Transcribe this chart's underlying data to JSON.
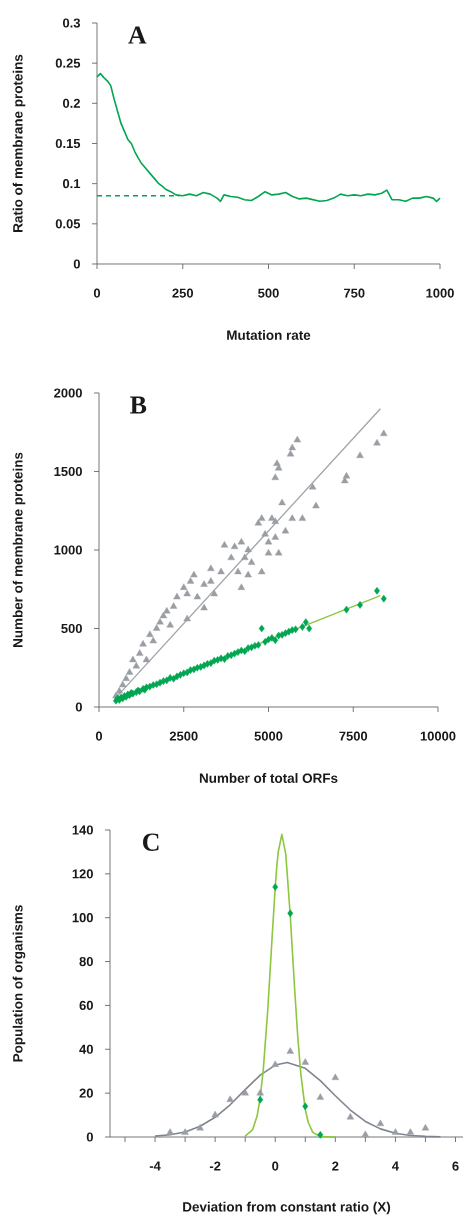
{
  "chart_data": [
    {
      "type": "line",
      "title": "A",
      "xlabel": "Mutation rate",
      "ylabel": "Ratio of membrane proteins",
      "xlim": [
        0,
        1000
      ],
      "ylim": [
        0,
        0.3
      ],
      "xticks": [
        0,
        250,
        500,
        750,
        1000
      ],
      "yticks": [
        0,
        0.05,
        0.1,
        0.15,
        0.2,
        0.25,
        0.3
      ],
      "series": [
        {
          "color": "#00a651",
          "marker": "none",
          "line_style": "solid",
          "x": [
            0,
            10,
            20,
            30,
            40,
            50,
            60,
            70,
            80,
            90,
            100,
            110,
            120,
            130,
            140,
            150,
            160,
            170,
            180,
            190,
            200,
            215,
            230,
            250,
            270,
            290,
            310,
            330,
            350,
            360,
            370,
            390,
            410,
            430,
            450,
            470,
            490,
            510,
            530,
            550,
            570,
            590,
            610,
            630,
            650,
            670,
            690,
            710,
            730,
            750,
            770,
            790,
            810,
            830,
            845,
            860,
            880,
            900,
            920,
            940,
            960,
            980,
            990,
            1000
          ],
          "values": [
            0.233,
            0.237,
            0.232,
            0.228,
            0.222,
            0.205,
            0.19,
            0.175,
            0.165,
            0.155,
            0.15,
            0.14,
            0.132,
            0.125,
            0.12,
            0.115,
            0.11,
            0.105,
            0.1,
            0.097,
            0.093,
            0.09,
            0.086,
            0.085,
            0.087,
            0.085,
            0.089,
            0.087,
            0.082,
            0.078,
            0.086,
            0.084,
            0.083,
            0.08,
            0.079,
            0.084,
            0.09,
            0.086,
            0.087,
            0.089,
            0.084,
            0.081,
            0.082,
            0.08,
            0.078,
            0.079,
            0.082,
            0.087,
            0.085,
            0.086,
            0.085,
            0.087,
            0.086,
            0.088,
            0.092,
            0.08,
            0.08,
            0.078,
            0.082,
            0.082,
            0.084,
            0.082,
            0.078,
            0.082
          ]
        },
        {
          "color": "#00a651",
          "marker": "none",
          "line_style": "dashed",
          "x": [
            0,
            240
          ],
          "values": [
            0.085,
            0.085
          ]
        }
      ]
    },
    {
      "type": "scatter",
      "title": "B",
      "xlabel": "Number of total ORFs",
      "ylabel": "Number of membrane proteins",
      "xlim": [
        0,
        10000
      ],
      "ylim": [
        0,
        2000
      ],
      "xticks": [
        0,
        2500,
        5000,
        7500,
        10000
      ],
      "yticks": [
        0,
        500,
        1000,
        1500,
        2000
      ],
      "series": [
        {
          "color": "#9a9ea4",
          "marker": "triangle",
          "x": [
            5850,
            5700,
            5650,
            5250,
            5300,
            5200,
            7300,
            7250,
            7700,
            8200,
            8400,
            6300,
            6400,
            5400,
            5700,
            6000,
            5200,
            4700,
            4800,
            5100,
            4900,
            5200,
            5500,
            5000,
            4400,
            4200,
            3700,
            4000,
            3900,
            4300,
            4500,
            4100,
            4400,
            5000,
            3600,
            3300,
            3300,
            3100,
            2800,
            2700,
            2500,
            2600,
            2900,
            3100,
            2300,
            2200,
            2000,
            1900,
            1800,
            1700,
            1500,
            1600,
            1300,
            1200,
            1000,
            1100,
            900,
            800,
            700,
            600,
            500,
            2100,
            2600,
            1400,
            3400,
            4200,
            4800,
            5300
          ],
          "values": [
            1700,
            1650,
            1610,
            1550,
            1520,
            1460,
            1470,
            1440,
            1600,
            1680,
            1740,
            1400,
            1280,
            1300,
            1200,
            1200,
            1180,
            1170,
            1200,
            1200,
            1100,
            1080,
            1120,
            1050,
            1000,
            1050,
            1030,
            1020,
            950,
            950,
            920,
            860,
            840,
            980,
            860,
            880,
            800,
            780,
            840,
            800,
            760,
            720,
            700,
            630,
            700,
            640,
            610,
            580,
            540,
            500,
            460,
            420,
            400,
            340,
            300,
            260,
            220,
            180,
            140,
            100,
            70,
            520,
            560,
            300,
            720,
            760,
            860,
            980
          ]
        },
        {
          "color": "#00a651",
          "marker": "diamond",
          "x": [
            500,
            550,
            600,
            650,
            700,
            750,
            800,
            850,
            900,
            950,
            1000,
            1100,
            1150,
            1200,
            1300,
            1350,
            1400,
            1500,
            1600,
            1700,
            1800,
            1900,
            2000,
            2100,
            2200,
            2300,
            2400,
            2500,
            2600,
            2700,
            2800,
            2900,
            3000,
            3100,
            3200,
            3300,
            3400,
            3500,
            3600,
            3700,
            3800,
            3900,
            4000,
            4100,
            4200,
            4300,
            4400,
            4500,
            4600,
            4700,
            4800,
            4900,
            5000,
            5100,
            5200,
            5300,
            5400,
            5500,
            5600,
            5700,
            5800,
            6000,
            6100,
            6200,
            7300,
            7700,
            8200,
            8400
          ],
          "values": [
            40,
            55,
            45,
            60,
            55,
            70,
            65,
            80,
            75,
            90,
            85,
            95,
            105,
            100,
            115,
            110,
            125,
            130,
            140,
            145,
            155,
            165,
            170,
            185,
            180,
            195,
            205,
            215,
            220,
            235,
            240,
            250,
            255,
            265,
            275,
            280,
            295,
            300,
            310,
            305,
            325,
            330,
            340,
            350,
            360,
            355,
            375,
            380,
            390,
            395,
            500,
            415,
            430,
            440,
            425,
            455,
            460,
            470,
            480,
            490,
            495,
            510,
            540,
            500,
            620,
            650,
            740,
            690
          ]
        },
        {
          "type": "line",
          "color": "#a0a4a8",
          "marker": "none",
          "line_style": "solid",
          "x": [
            500,
            8300
          ],
          "values": [
            60,
            1900
          ]
        },
        {
          "type": "line",
          "color": "#8dc63f",
          "marker": "none",
          "line_style": "solid",
          "x": [
            500,
            8300
          ],
          "values": [
            40,
            710
          ]
        }
      ]
    },
    {
      "type": "scatter",
      "title": "C",
      "xlabel": "Deviation from constant ratio (X)",
      "ylabel": "Population of organisms",
      "xlim": [
        -5.5,
        6.25
      ],
      "ylim": [
        0,
        140
      ],
      "xticks": [
        {
          "value": -5,
          "label": null
        },
        -4,
        {
          "value": -3,
          "label": null
        },
        -2,
        {
          "value": -1,
          "label": null
        },
        0,
        {
          "value": 1,
          "label": null
        },
        2,
        {
          "value": 3,
          "label": null
        },
        4,
        {
          "value": 5,
          "label": null
        },
        6
      ],
      "yticks": [
        0,
        20,
        40,
        60,
        80,
        100,
        120,
        140
      ],
      "series": [
        {
          "type": "line",
          "color": "#7f8590",
          "marker": "none",
          "line_style": "solid",
          "x": [
            -4,
            -3.5,
            -3,
            -2.5,
            -2,
            -1.5,
            -1,
            -0.5,
            0,
            0.4,
            1,
            1.5,
            2,
            2.5,
            3,
            3.5,
            4,
            4.5,
            5,
            5.5
          ],
          "values": [
            0.4,
            1,
            2.3,
            4.9,
            9,
            14.7,
            21.6,
            28.2,
            32.8,
            34,
            31.3,
            25.7,
            18.8,
            12.3,
            7.1,
            3.7,
            1.7,
            0.7,
            0.3,
            0.1
          ]
        },
        {
          "type": "line",
          "color": "#8dc63f",
          "marker": "none",
          "line_style": "solid",
          "x": [
            -1,
            -0.75,
            -0.6,
            -0.5,
            -0.4,
            -0.25,
            -0.15,
            -0.1,
            0,
            0.05,
            0.1,
            0.22,
            0.35,
            0.5,
            0.6,
            0.65,
            0.75,
            0.85,
            1,
            1.1,
            1.25,
            1.5,
            2
          ],
          "values": [
            0.4,
            3.4,
            9.8,
            18,
            30.4,
            57.8,
            80.5,
            92,
            114,
            123,
            130,
            138,
            129,
            101,
            78,
            66.6,
            45.7,
            29,
            12.5,
            6.6,
            2.1,
            0.2,
            0
          ]
        },
        {
          "color": "#9a9ea4",
          "marker": "triangle",
          "x": [
            -3.5,
            -3,
            -2.5,
            -2,
            -1.5,
            -1,
            -0.5,
            0,
            0.5,
            1,
            1.5,
            2,
            2.5,
            3,
            3.5,
            4,
            4.5,
            5
          ],
          "values": [
            2,
            2,
            4,
            10,
            17,
            20,
            20,
            33,
            39,
            34,
            18,
            27,
            9,
            1,
            6,
            2,
            2,
            4
          ]
        },
        {
          "color": "#00a651",
          "marker": "diamond",
          "x": [
            -0.5,
            0,
            0.5,
            1,
            1.5
          ],
          "values": [
            17,
            114,
            102,
            14,
            1
          ]
        }
      ]
    }
  ]
}
